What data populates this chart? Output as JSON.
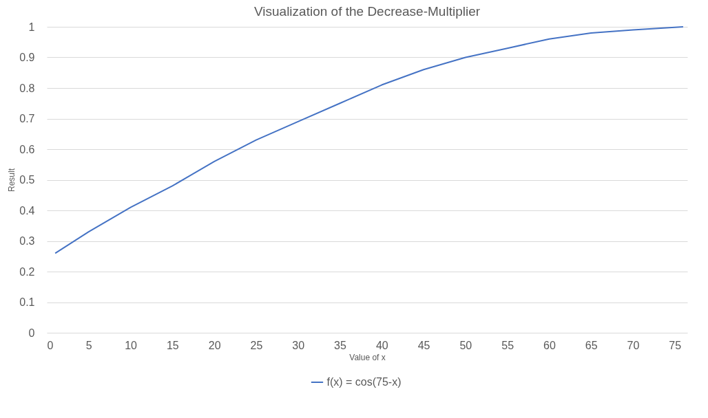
{
  "chart_data": {
    "type": "line",
    "title": "Visualization of the Decrease-Multiplier",
    "xlabel": "Value of x",
    "ylabel": "Result",
    "x": [
      1,
      5,
      10,
      15,
      20,
      25,
      30,
      35,
      40,
      45,
      50,
      55,
      60,
      65,
      70,
      76
    ],
    "series": [
      {
        "name": "f(x) = cos(75-x)",
        "color": "#4472c4",
        "values": [
          0.26,
          0.33,
          0.41,
          0.48,
          0.56,
          0.63,
          0.69,
          0.75,
          0.81,
          0.86,
          0.9,
          0.93,
          0.96,
          0.98,
          0.99,
          1.0
        ]
      }
    ],
    "xlim": [
      0,
      76.5
    ],
    "xticks": [
      0,
      5,
      10,
      15,
      20,
      25,
      30,
      35,
      40,
      45,
      50,
      55,
      60,
      65,
      70,
      75
    ],
    "ylim": [
      0,
      1
    ],
    "yticks": [
      0,
      0.1,
      0.2,
      0.3,
      0.4,
      0.5,
      0.6,
      0.7,
      0.8,
      0.9,
      1
    ],
    "grid": "y",
    "legend": "bottom",
    "marker": "none",
    "line_style": "solid"
  }
}
